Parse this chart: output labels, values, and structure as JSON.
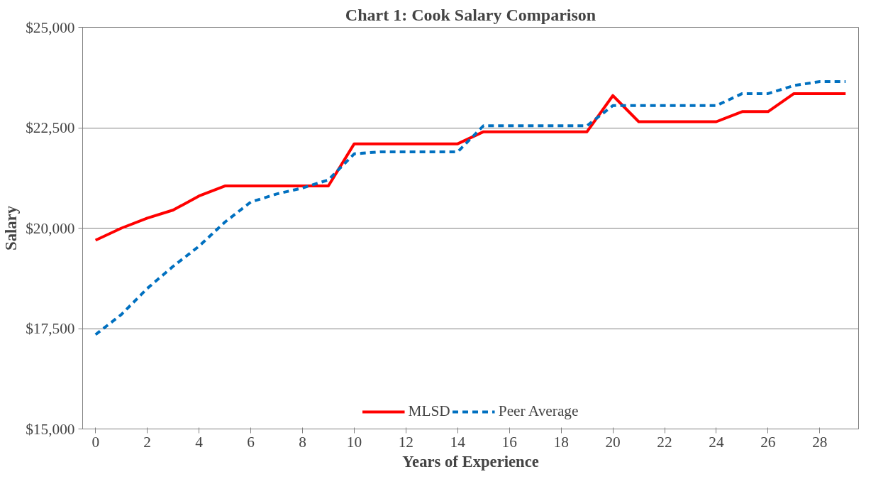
{
  "chart_data": {
    "type": "line",
    "title": "Chart 1: Cook Salary Comparison",
    "xlabel": "Years of Experience",
    "ylabel": "Salary",
    "x": [
      0,
      1,
      2,
      3,
      4,
      5,
      6,
      7,
      8,
      9,
      10,
      11,
      12,
      13,
      14,
      15,
      16,
      17,
      18,
      19,
      20,
      21,
      22,
      23,
      24,
      25,
      26,
      27,
      28,
      29
    ],
    "series": [
      {
        "name": "MLSD",
        "color": "#ff0000",
        "line_style": "solid",
        "values": [
          19700,
          20000,
          20250,
          20450,
          20800,
          21050,
          21050,
          21050,
          21050,
          21050,
          22100,
          22100,
          22100,
          22100,
          22100,
          22400,
          22400,
          22400,
          22400,
          22400,
          23300,
          22650,
          22650,
          22650,
          22650,
          22900,
          22900,
          23350,
          23350,
          23350
        ]
      },
      {
        "name": "Peer Average",
        "color": "#0070c0",
        "line_style": "dashed",
        "values": [
          17350,
          17850,
          18500,
          19050,
          19550,
          20150,
          20650,
          20850,
          21000,
          21200,
          21850,
          21900,
          21900,
          21900,
          21900,
          22550,
          22550,
          22550,
          22550,
          22550,
          23050,
          23050,
          23050,
          23050,
          23050,
          23350,
          23350,
          23550,
          23650,
          23650
        ]
      }
    ],
    "xlim": [
      -0.5,
      29.5
    ],
    "xticks": [
      0,
      2,
      4,
      6,
      8,
      10,
      12,
      14,
      16,
      18,
      20,
      22,
      24,
      26,
      28
    ],
    "ylim": [
      15000,
      25000
    ],
    "yticks": [
      {
        "value": 15000,
        "label": "$15,000"
      },
      {
        "value": 17500,
        "label": "$17,500"
      },
      {
        "value": 20000,
        "label": "$20,000"
      },
      {
        "value": 22500,
        "label": "$22,500"
      },
      {
        "value": 25000,
        "label": "$25,000"
      }
    ],
    "grid": "y",
    "legend": "bottom"
  }
}
